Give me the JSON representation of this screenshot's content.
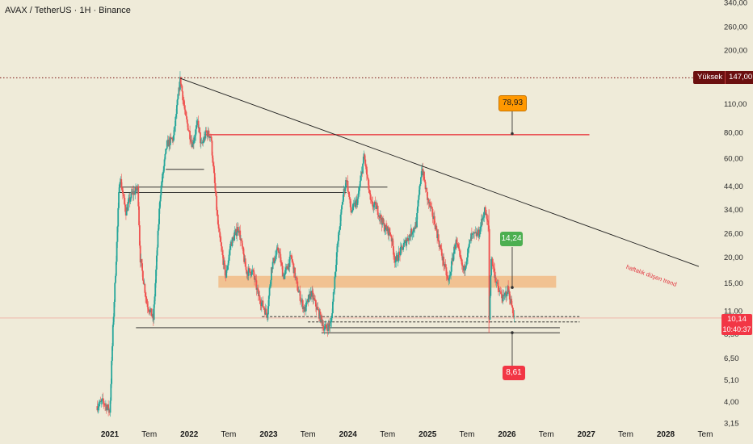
{
  "header": {
    "pair": "AVAX / TetherUS",
    "sep1": " · ",
    "interval": "1H",
    "sep2": " · ",
    "exchange": "Binance"
  },
  "colors": {
    "background": "#efebd9",
    "up_candle": "#26a69a",
    "down_candle": "#ef5350",
    "trendline": "#1f1f1f",
    "resistance_red": "#e8262e",
    "support_zone": "#f2b47a",
    "high_line": "#7a1010",
    "target_orange": "#ff9800",
    "target_green": "#4caf50",
    "target_red": "#f23645"
  },
  "chart_data": {
    "type": "candlestick",
    "symbol": "AVAX/USDT",
    "exchange": "Binance",
    "timeframe": "1H",
    "y_scale": "log",
    "ylim": [
      3.15,
      340
    ],
    "y_ticks": [
      "340,00",
      "260,00",
      "200,00",
      "150,00",
      "110,00",
      "80,00",
      "60,00",
      "44,00",
      "34,00",
      "26,00",
      "20,00",
      "15,00",
      "11,00",
      "8,50",
      "6,50",
      "5,10",
      "4,00",
      "3,15"
    ],
    "x_ticks": [
      {
        "label": "2021",
        "year": true
      },
      {
        "label": "Tem",
        "year": false
      },
      {
        "label": "2022",
        "year": true
      },
      {
        "label": "Tem",
        "year": false
      },
      {
        "label": "2023",
        "year": true
      },
      {
        "label": "Tem",
        "year": false
      },
      {
        "label": "2024",
        "year": true
      },
      {
        "label": "Tem",
        "year": false
      },
      {
        "label": "2025",
        "year": true
      },
      {
        "label": "Tem",
        "year": false
      },
      {
        "label": "2026",
        "year": true
      },
      {
        "label": "Tem",
        "year": false
      },
      {
        "label": "2027",
        "year": true
      },
      {
        "label": "Tem",
        "year": false
      },
      {
        "label": "2028",
        "year": true
      },
      {
        "label": "Tem",
        "year": false
      }
    ],
    "price_path": [
      [
        "2020-11-01",
        3.8
      ],
      [
        "2020-12-01",
        4.0
      ],
      [
        "2021-01-01",
        3.6
      ],
      [
        "2021-01-15",
        9
      ],
      [
        "2021-02-01",
        22
      ],
      [
        "2021-02-15",
        50
      ],
      [
        "2021-03-15",
        33
      ],
      [
        "2021-04-10",
        40
      ],
      [
        "2021-05-10",
        43
      ],
      [
        "2021-05-20",
        20
      ],
      [
        "2021-06-20",
        12
      ],
      [
        "2021-07-20",
        10
      ],
      [
        "2021-08-20",
        40
      ],
      [
        "2021-09-20",
        70
      ],
      [
        "2021-10-20",
        75
      ],
      [
        "2021-11-21",
        146
      ],
      [
        "2021-12-15",
        95
      ],
      [
        "2022-01-15",
        70
      ],
      [
        "2022-02-10",
        90
      ],
      [
        "2022-02-25",
        68
      ],
      [
        "2022-03-20",
        80
      ],
      [
        "2022-04-10",
        77
      ],
      [
        "2022-05-15",
        27
      ],
      [
        "2022-06-18",
        16
      ],
      [
        "2022-07-10",
        23
      ],
      [
        "2022-08-15",
        28
      ],
      [
        "2022-09-20",
        17
      ],
      [
        "2022-10-20",
        17
      ],
      [
        "2022-11-15",
        13
      ],
      [
        "2022-12-25",
        10.5
      ],
      [
        "2023-01-15",
        18
      ],
      [
        "2023-02-15",
        22
      ],
      [
        "2023-03-10",
        16
      ],
      [
        "2023-04-15",
        20
      ],
      [
        "2023-05-15",
        14
      ],
      [
        "2023-06-15",
        11
      ],
      [
        "2023-07-15",
        13.5
      ],
      [
        "2023-08-15",
        11
      ],
      [
        "2023-09-15",
        9
      ],
      [
        "2023-10-15",
        9.5
      ],
      [
        "2023-11-10",
        21
      ],
      [
        "2023-12-10",
        40
      ],
      [
        "2023-12-25",
        48
      ],
      [
        "2024-01-15",
        33
      ],
      [
        "2024-02-15",
        38
      ],
      [
        "2024-03-15",
        62
      ],
      [
        "2024-04-15",
        36
      ],
      [
        "2024-05-10",
        35
      ],
      [
        "2024-06-15",
        28
      ],
      [
        "2024-07-15",
        26
      ],
      [
        "2024-08-05",
        19
      ],
      [
        "2024-09-15",
        23
      ],
      [
        "2024-10-15",
        26
      ],
      [
        "2024-11-10",
        29
      ],
      [
        "2024-12-05",
        55
      ],
      [
        "2025-01-01",
        38
      ],
      [
        "2025-02-01",
        30
      ],
      [
        "2025-02-28",
        22
      ],
      [
        "2025-04-07",
        15
      ],
      [
        "2025-05-10",
        24
      ],
      [
        "2025-06-15",
        17
      ],
      [
        "2025-07-20",
        25
      ],
      [
        "2025-08-25",
        26
      ],
      [
        "2025-09-20",
        34
      ],
      [
        "2025-10-10",
        27
      ],
      [
        "2025-10-11",
        9.2
      ],
      [
        "2025-10-20",
        20
      ],
      [
        "2025-11-20",
        14
      ],
      [
        "2025-12-15",
        12.5
      ],
      [
        "2026-01-05",
        14
      ],
      [
        "2026-01-20",
        12
      ],
      [
        "2026-02-05",
        10.14
      ]
    ],
    "trendline": {
      "start": [
        "2021-11-21",
        146
      ],
      "end": [
        "2028-06-01",
        18
      ]
    },
    "horizontal_lines": [
      {
        "kind": "resistance",
        "y": 78,
        "from": "2022-03-10",
        "to": "2027-01-15"
      },
      {
        "kind": "support",
        "y": 53,
        "from": "2021-09-15",
        "to": "2022-03-10"
      },
      {
        "kind": "support",
        "y": 43.5,
        "from": "2021-02-15",
        "to": "2024-06-30"
      },
      {
        "kind": "support",
        "y": 41,
        "from": "2021-02-15",
        "to": "2023-12-25"
      },
      {
        "kind": "support",
        "y": 9.1,
        "from": "2021-05-01",
        "to": "2026-09-01"
      },
      {
        "kind": "support",
        "y": 8.6,
        "from": "2023-09-01",
        "to": "2026-09-01"
      },
      {
        "kind": "dashed",
        "y": 10.3,
        "from": "2022-12-01",
        "to": "2026-12-01"
      },
      {
        "kind": "dashed",
        "y": 9.7,
        "from": "2023-07-01",
        "to": "2026-12-01"
      }
    ],
    "zones": [
      {
        "y_low": 14.2,
        "y_high": 16.2,
        "from": "2022-05-15",
        "to": "2026-08-15"
      }
    ],
    "annotations": [
      {
        "label": "78,93",
        "value": 78.93,
        "date": "2026-01-25",
        "style": "orange",
        "position": "above"
      },
      {
        "label": "14,24",
        "value": 14.24,
        "date": "2026-01-25",
        "style": "green",
        "position": "above"
      },
      {
        "label": "8,61",
        "value": 8.61,
        "date": "2026-01-25",
        "style": "red",
        "position": "below"
      }
    ],
    "trend_text": "haftalık düşen trend",
    "high_label": {
      "name": "Yüksek",
      "value": "147,00",
      "y": 147
    },
    "last_price": {
      "value": "10,14",
      "countdown": "10:40:37",
      "y": 10.14
    }
  }
}
